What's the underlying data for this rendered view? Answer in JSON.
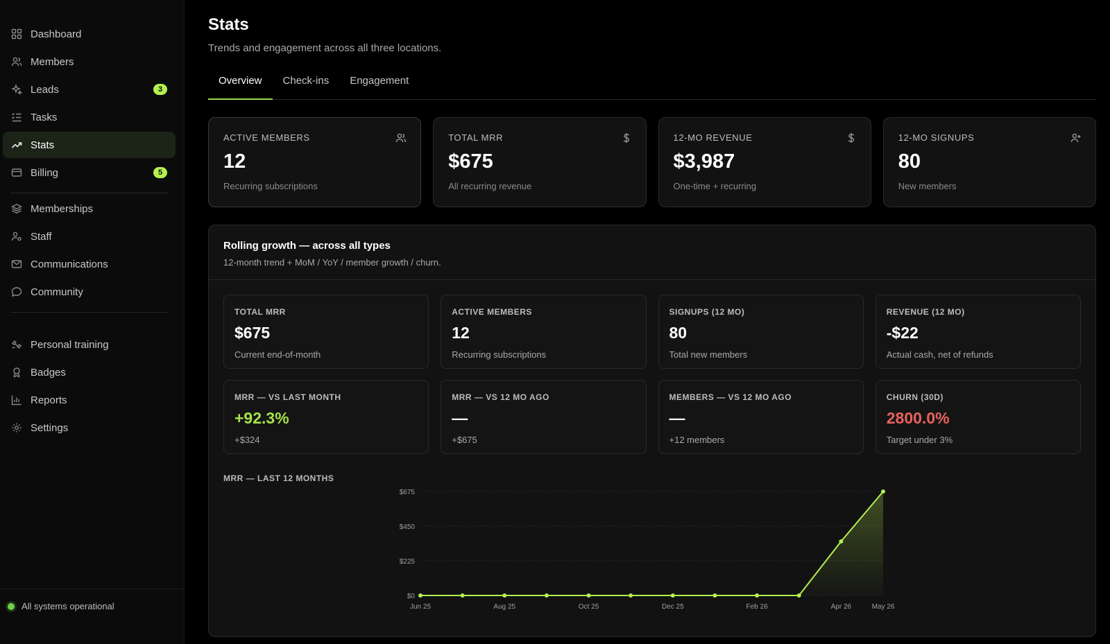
{
  "sidebar": {
    "primary": [
      {
        "label": "Dashboard",
        "icon": "dashboard-icon"
      },
      {
        "label": "Members",
        "icon": "members-icon"
      },
      {
        "label": "Leads",
        "icon": "sparkle-icon",
        "badge": "3"
      },
      {
        "label": "Tasks",
        "icon": "tasks-icon"
      },
      {
        "label": "Stats",
        "icon": "trend-icon",
        "active": true
      },
      {
        "label": "Billing",
        "icon": "card-icon",
        "badge": "5"
      }
    ],
    "secondary": [
      {
        "label": "Memberships",
        "icon": "layers-icon"
      },
      {
        "label": "Staff",
        "icon": "staff-icon"
      },
      {
        "label": "Communications",
        "icon": "mail-icon"
      },
      {
        "label": "Community",
        "icon": "chat-icon"
      }
    ],
    "tertiary": [
      {
        "label": "Personal training",
        "icon": "training-icon"
      },
      {
        "label": "Badges",
        "icon": "badge-icon"
      },
      {
        "label": "Reports",
        "icon": "reports-icon"
      },
      {
        "label": "Settings",
        "icon": "gear-icon"
      }
    ],
    "status": "All systems operational"
  },
  "page": {
    "title": "Stats",
    "subtitle": "Trends and engagement across all three locations."
  },
  "tabs": [
    "Overview",
    "Check-ins",
    "Engagement"
  ],
  "kpis": [
    {
      "label": "Active Members",
      "value": "12",
      "note": "Recurring subscriptions",
      "icon": "members-icon"
    },
    {
      "label": "Total MRR",
      "value": "$675",
      "note": "All recurring revenue",
      "icon": "dollar-icon"
    },
    {
      "label": "12-mo Revenue",
      "value": "$3,987",
      "note": "One-time + recurring",
      "icon": "dollar-icon"
    },
    {
      "label": "12-mo Signups",
      "value": "80",
      "note": "New members",
      "icon": "user-plus-icon"
    }
  ],
  "growth": {
    "title": "Rolling growth — across all types",
    "subtitle": "12-month trend + MoM / YoY / member growth / churn.",
    "stats": [
      {
        "label": "Total MRR",
        "value": "$675",
        "note": "Current end-of-month",
        "tone": ""
      },
      {
        "label": "Active Members",
        "value": "12",
        "note": "Recurring subscriptions",
        "tone": ""
      },
      {
        "label": "Signups (12 mo)",
        "value": "80",
        "note": "Total new members",
        "tone": ""
      },
      {
        "label": "Revenue (12 mo)",
        "value": "-$22",
        "note": "Actual cash, net of refunds",
        "tone": ""
      },
      {
        "label": "MRR — vs last month",
        "value": "+92.3%",
        "note": "+$324",
        "tone": "pos"
      },
      {
        "label": "MRR — vs 12 mo ago",
        "value": "—",
        "note": "+$675",
        "tone": ""
      },
      {
        "label": "Members — vs 12 mo ago",
        "value": "—",
        "note": "+12 members",
        "tone": ""
      },
      {
        "label": "Churn (30d)",
        "value": "2800.0%",
        "note": "Target under 3%",
        "tone": "neg"
      }
    ],
    "chart_label": "MRR — last 12 months"
  },
  "colors": {
    "accent": "#b4f050",
    "positive": "#a6e24a",
    "negative": "#e8625c"
  },
  "chart_data": {
    "type": "area",
    "title": "MRR — last 12 months",
    "x": [
      "Jun 25",
      "Jul 25",
      "Aug 25",
      "Sep 25",
      "Oct 25",
      "Nov 25",
      "Dec 25",
      "Jan 26",
      "Feb 26",
      "Mar 26",
      "Apr 26",
      "May 26"
    ],
    "x_tick_labels": [
      "Jun 25",
      "Aug 25",
      "Oct 25",
      "Dec 25",
      "Feb 26",
      "Apr 26",
      "May 26"
    ],
    "series": [
      {
        "values": [
          0,
          0,
          0,
          0,
          0,
          0,
          0,
          0,
          0,
          0,
          351,
          675
        ]
      }
    ],
    "y_ticks": [
      "$0",
      "$225",
      "$450",
      "$675"
    ],
    "ylim": [
      0,
      675
    ],
    "grid": true
  }
}
